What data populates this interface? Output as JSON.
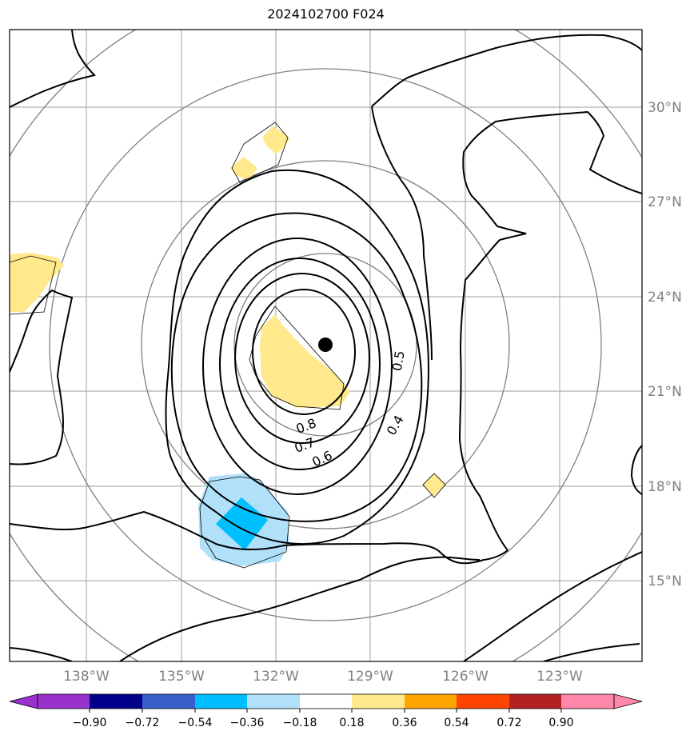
{
  "title": "2024102700 F024",
  "map": {
    "lon_range": [
      -140.5,
      -120.5
    ],
    "lat_range": [
      12.5,
      32.5
    ],
    "lon_ticks": [
      "138°W",
      "135°W",
      "132°W",
      "129°W",
      "126°W",
      "123°W"
    ],
    "lat_ticks": [
      "30°N",
      "27°N",
      "24°N",
      "21°N",
      "18°N",
      "15°N"
    ],
    "gridlines": true,
    "range_rings": "concentric gray circles around storm center",
    "storm_center": {
      "lon": -130.5,
      "lat": 22.5
    },
    "contour_labels": [
      "0.8",
      "0.7",
      "0.6",
      "0.5",
      "0.4"
    ]
  },
  "colorbar": {
    "ticks": [
      "−0.90",
      "−0.72",
      "−0.54",
      "−0.36",
      "−0.18",
      "0.18",
      "0.36",
      "0.54",
      "0.72",
      "0.90"
    ],
    "colors": [
      "#9932cc",
      "#00008b",
      "#3a5fcd",
      "#00bfff",
      "#b0e0fa",
      "#ffffff",
      "#ffe98c",
      "#ffa500",
      "#ff4500",
      "#b22222",
      "#ff88aa"
    ],
    "extend": "both"
  },
  "shaded_regions": [
    {
      "name": "positive-core",
      "color": "#ffe98c"
    },
    {
      "name": "negative-south",
      "color": "#b0e0fa"
    },
    {
      "name": "negative-south-strong",
      "color": "#00bfff"
    }
  ]
}
